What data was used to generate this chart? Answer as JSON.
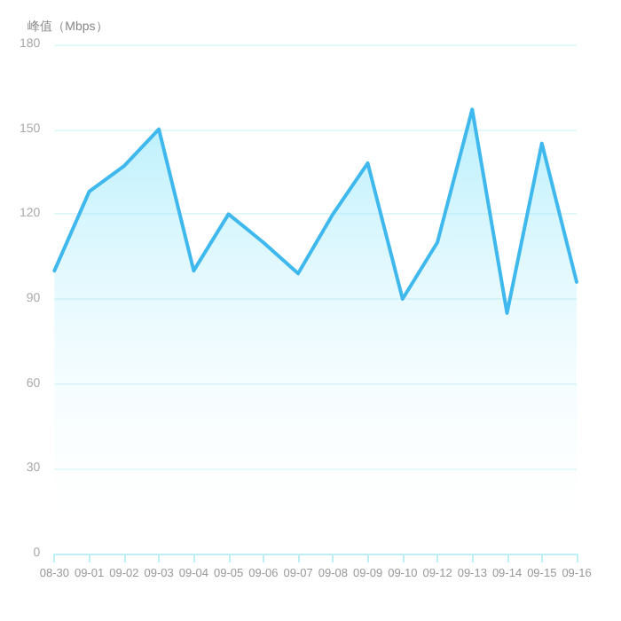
{
  "chart_data": {
    "type": "area",
    "ylabel": "峰值（Mbps）",
    "categories": [
      "08-30",
      "09-01",
      "09-02",
      "09-03",
      "09-04",
      "09-05",
      "09-06",
      "09-07",
      "09-08",
      "09-09",
      "09-10",
      "09-12",
      "09-13",
      "09-14",
      "09-15",
      "09-16"
    ],
    "values": [
      100,
      128,
      137,
      150,
      100,
      120,
      110,
      99,
      120,
      138,
      90,
      110,
      157,
      85,
      145,
      96
    ],
    "color": "#3fb8ee",
    "ylim": [
      0,
      180
    ],
    "yticks": [
      0,
      30,
      60,
      90,
      120,
      150,
      180
    ],
    "grid": "y",
    "marker": "none",
    "line_style": "solid"
  }
}
